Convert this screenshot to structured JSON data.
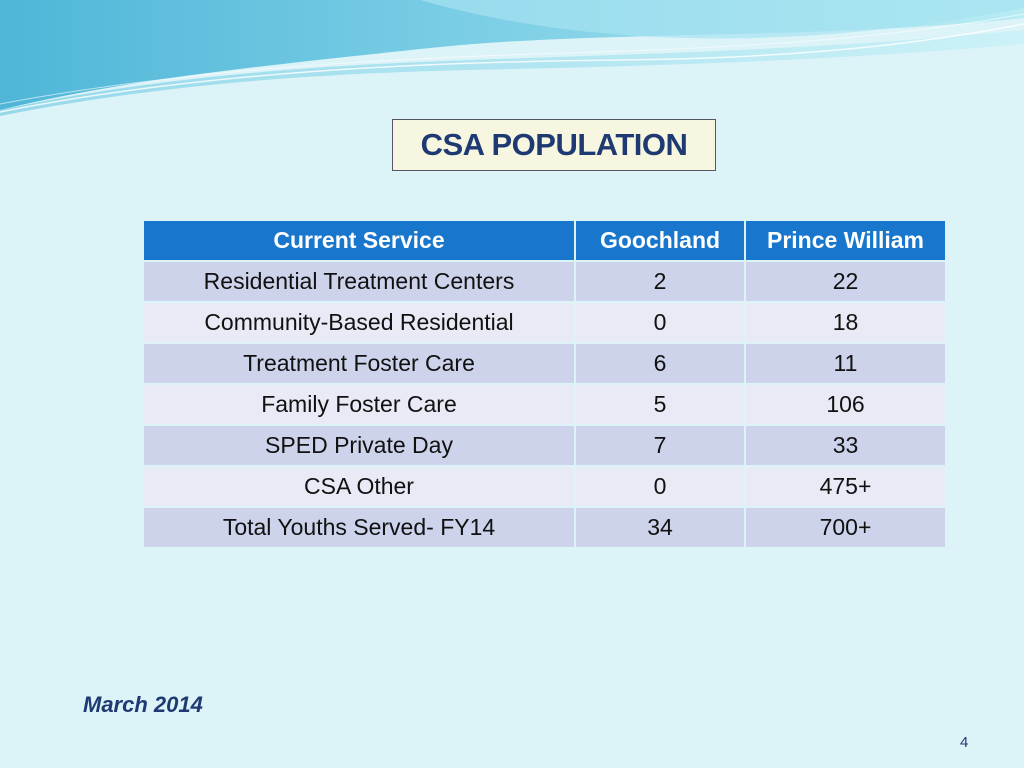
{
  "slide": {
    "title": "CSA POPULATION",
    "date": "March 2014",
    "page_number": "4"
  },
  "table": {
    "headers": [
      "Current Service",
      "Goochland",
      "Prince William"
    ],
    "rows": [
      [
        "Residential Treatment Centers",
        "2",
        "22"
      ],
      [
        "Community-Based Residential",
        "0",
        "18"
      ],
      [
        "Treatment Foster Care",
        "6",
        "11"
      ],
      [
        "Family Foster Care",
        "5",
        "106"
      ],
      [
        "SPED Private Day",
        "7",
        "33"
      ],
      [
        "CSA Other",
        "0",
        "475+"
      ],
      [
        "Total Youths Served- FY14",
        "34",
        "700+"
      ]
    ]
  },
  "colors": {
    "background": "#dcf3f8",
    "header": "#1876cd",
    "row_dark": "#cdd3ea",
    "row_light": "#e8eaf5",
    "title_text": "#1f3a73",
    "title_box": "#f7f7e1"
  }
}
